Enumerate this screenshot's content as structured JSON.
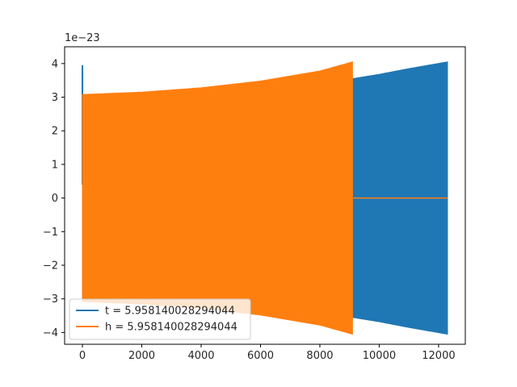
{
  "chart_data": {
    "type": "line",
    "axis_offset_label": "1e−23",
    "xlim": [
      -600,
      12900
    ],
    "ylim": [
      -4.35,
      4.5
    ],
    "x_ticks": [
      0,
      2000,
      4000,
      6000,
      8000,
      10000,
      12000
    ],
    "y_ticks": [
      -4,
      -3,
      -2,
      -1,
      0,
      1,
      2,
      3,
      4
    ],
    "y_tick_labels": [
      "−4",
      "−3",
      "−2",
      "−1",
      "0",
      "1",
      "2",
      "3",
      "4"
    ],
    "grid": false,
    "legend_position": "lower-left",
    "series": [
      {
        "name": "t = 5.958140028294044",
        "color": "#1f77b4",
        "render": "oscillation-envelope",
        "spike": {
          "x": 0,
          "y_max": 3.95,
          "y_min": 0.4
        },
        "x_start": 0,
        "x_end": 12300,
        "envelope": [
          [
            0,
            3.05
          ],
          [
            2000,
            3.12
          ],
          [
            4000,
            3.25
          ],
          [
            6000,
            3.45
          ],
          [
            8000,
            3.75
          ],
          [
            9100,
            3.55
          ],
          [
            10000,
            3.68
          ],
          [
            11000,
            3.85
          ],
          [
            12300,
            4.05
          ]
        ]
      },
      {
        "name": "h = 5.958140028294044",
        "color": "#ff7f0e",
        "render": "oscillation-envelope",
        "x_start": 0,
        "x_end": 9100,
        "envelope": [
          [
            0,
            3.08
          ],
          [
            2000,
            3.15
          ],
          [
            4000,
            3.28
          ],
          [
            6000,
            3.48
          ],
          [
            8000,
            3.78
          ],
          [
            9100,
            4.05
          ]
        ],
        "flat_tail": {
          "x_start": 9100,
          "x_end": 12300,
          "value": 0
        }
      }
    ]
  }
}
